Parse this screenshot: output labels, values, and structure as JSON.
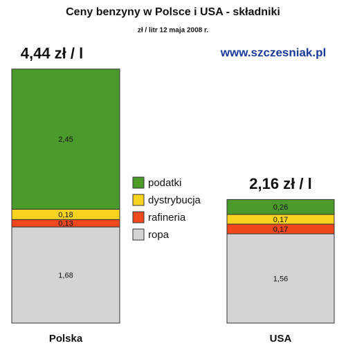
{
  "chart_data": {
    "type": "stacked_bar",
    "title": "Ceny benzyny w Polsce i USA - składniki",
    "subtitle": "zł / litr 12 maja 2008 r.",
    "source": "www.szczesniak.pl",
    "categories": [
      "Polska",
      "USA"
    ],
    "series": [
      {
        "name": "ropa",
        "color": "#d4d4d4",
        "values": [
          1.68,
          1.56
        ],
        "value_labels": [
          "1,68",
          "1,56"
        ]
      },
      {
        "name": "rafineria",
        "color": "#f0481c",
        "values": [
          0.13,
          0.17
        ],
        "value_labels": [
          "0,13",
          "0,17"
        ]
      },
      {
        "name": "dystrybucja",
        "color": "#f7d21e",
        "values": [
          0.18,
          0.17
        ],
        "value_labels": [
          "0,18",
          "0,17"
        ]
      },
      {
        "name": "podatki",
        "color": "#4b9a2b",
        "values": [
          2.45,
          0.26
        ],
        "value_labels": [
          "2,45",
          "0,26"
        ]
      }
    ],
    "totals": [
      4.44,
      2.16
    ],
    "total_labels": [
      "4,44 zł / l",
      "2,16 zł / l"
    ]
  }
}
